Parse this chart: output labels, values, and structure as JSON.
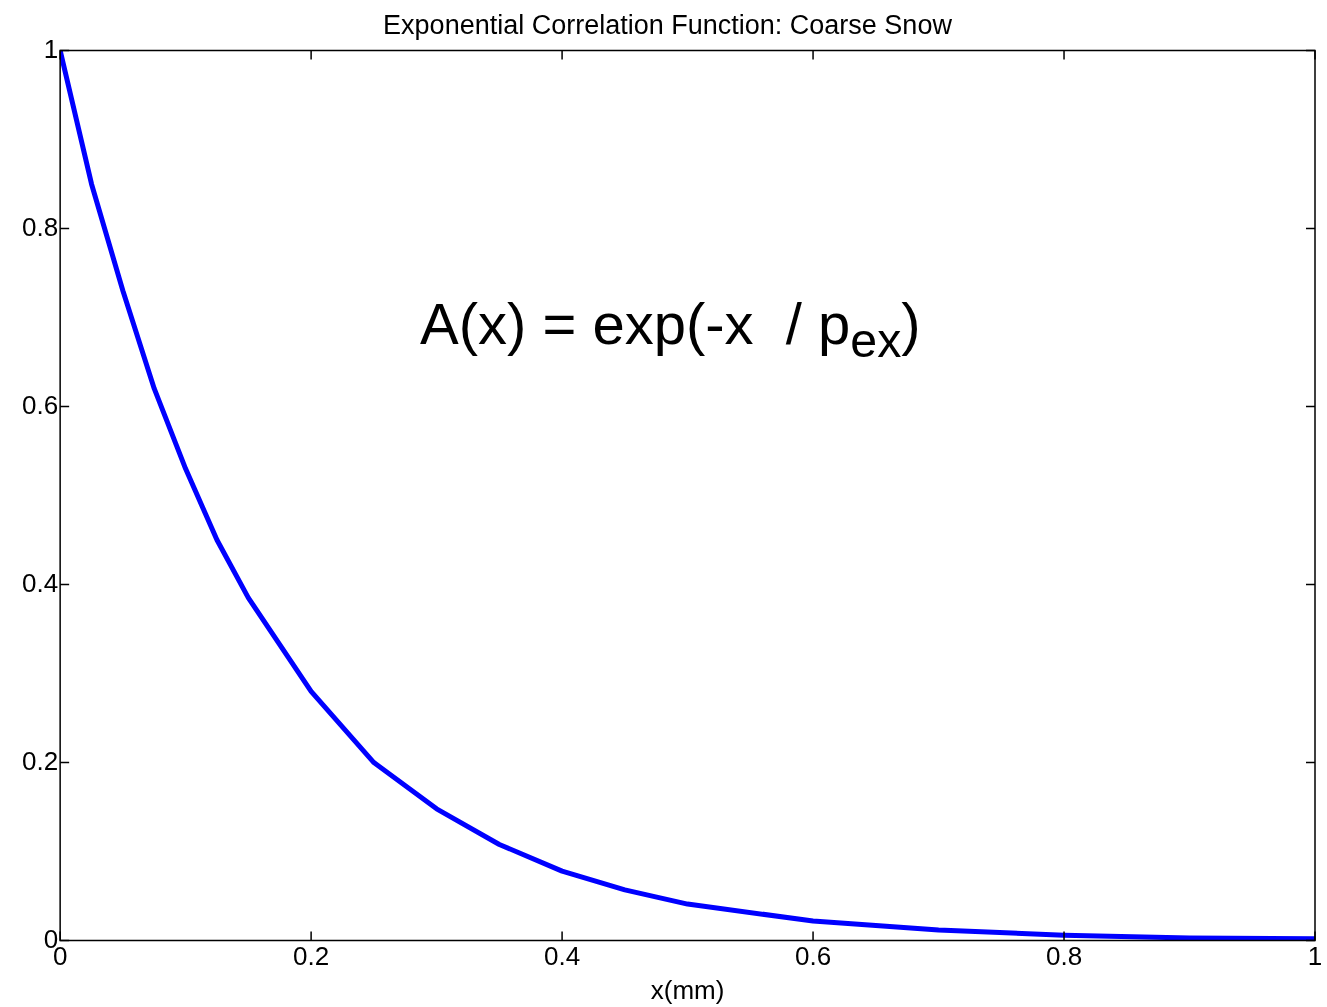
{
  "chart_data": {
    "type": "line",
    "title": "Exponential Correlation Function: Coarse Snow",
    "xlabel": "x(mm)",
    "annotations": [
      "A(x) = exp(-x  / p$_{ex}$)"
    ],
    "x": [
      0,
      0.025,
      0.05,
      0.075,
      0.1,
      0.125,
      0.15,
      0.2,
      0.25,
      0.3,
      0.35,
      0.4,
      0.45,
      0.5,
      0.6,
      0.7,
      0.8,
      0.9,
      1
    ],
    "series": [
      {
        "color": "#0000ff",
        "values": [
          1,
          0.85,
          0.73,
          0.62,
          0.53,
          0.45,
          0.385,
          0.28,
          0.2,
          0.148,
          0.108,
          0.078,
          0.057,
          0.041,
          0.022,
          0.012,
          0.006,
          0.003,
          0.002
        ]
      }
    ],
    "xlim": [
      0,
      1
    ],
    "xticks": [
      0,
      {
        "value": 0.2,
        "label": "0.2"
      },
      {
        "value": 0.4,
        "label": "0.4"
      },
      {
        "value": 0.6,
        "label": "0.6"
      },
      {
        "value": 0.8,
        "label": "0.8"
      },
      1
    ],
    "ylim": [
      0,
      1
    ],
    "yticks": [
      0,
      {
        "value": 0.2,
        "label": "0.2"
      },
      {
        "value": 0.4,
        "label": "0.4"
      },
      {
        "value": 0.6,
        "label": "0.6"
      },
      {
        "value": 0.8,
        "label": "0.8"
      },
      1
    ],
    "legend": false,
    "marker": "none",
    "line_style": "solid"
  }
}
